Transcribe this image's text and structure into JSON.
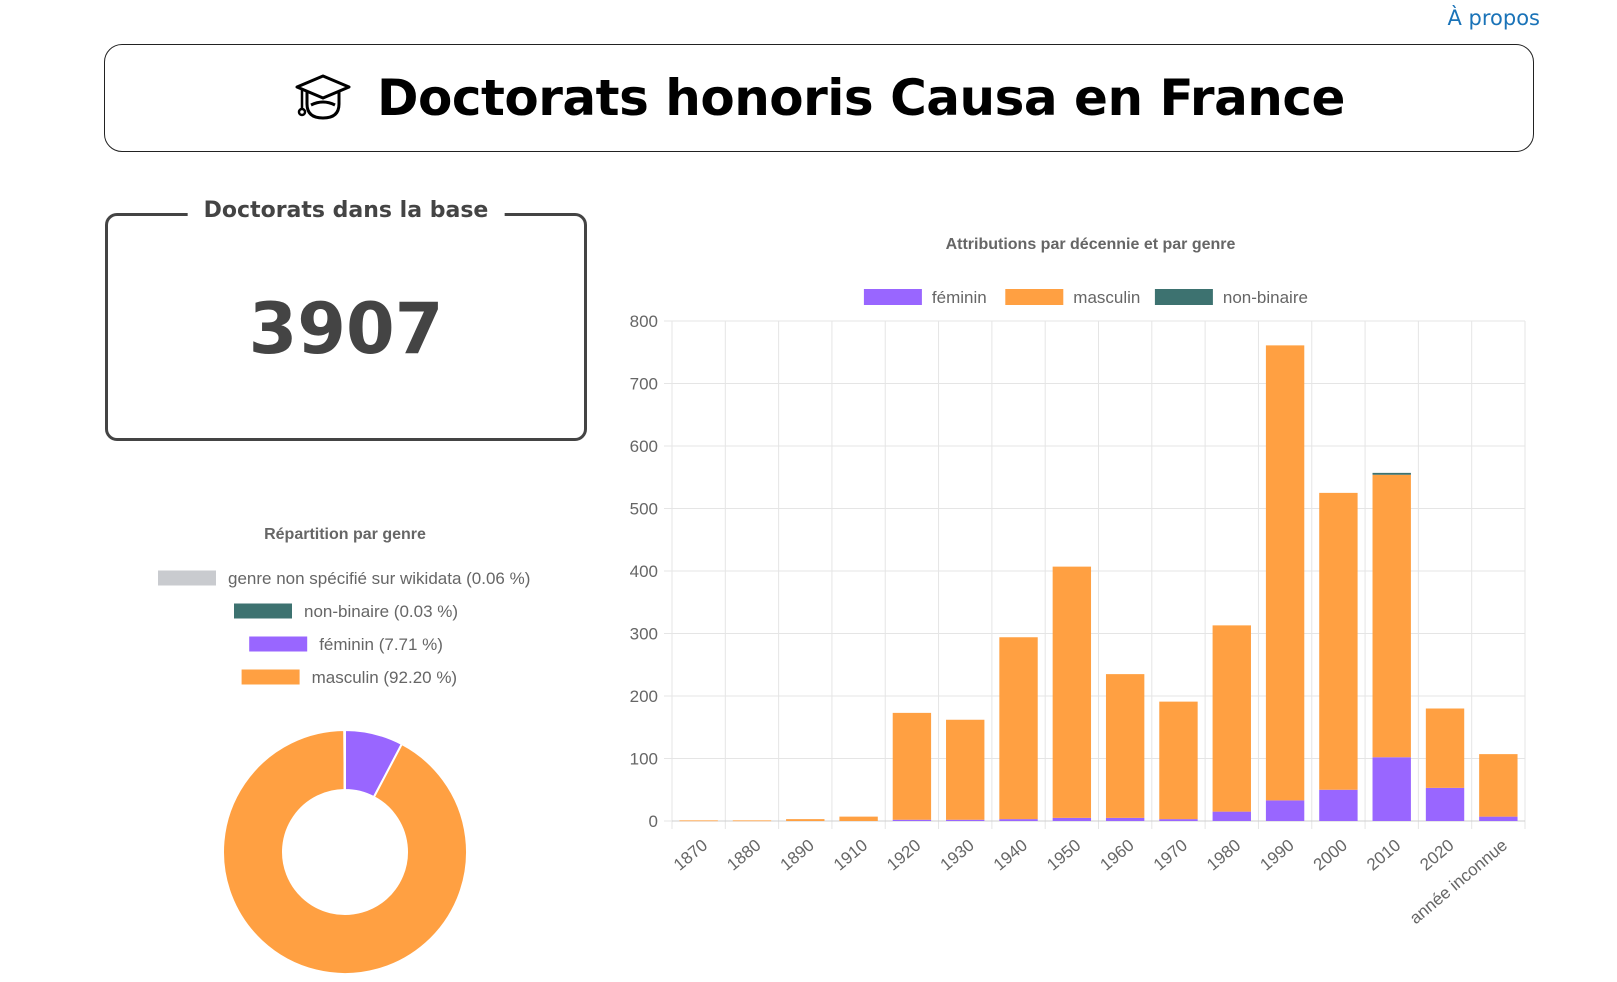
{
  "nav": {
    "about_label": "À propos"
  },
  "header": {
    "title": "Doctorats honoris Causa en France",
    "icon": "graduation-cap-icon"
  },
  "stat": {
    "label": "Doctorats dans la base",
    "value": "3907"
  },
  "colors": {
    "feminin": "#9966ff",
    "masculin": "#ffa042",
    "non_binaire": "#3d7270",
    "non_specifie": "#c9cbcf"
  },
  "chart_data": [
    {
      "type": "pie",
      "title": "Répartition par genre",
      "donut": true,
      "legend_position": "top",
      "slices": [
        {
          "label": "genre non spécifié sur wikidata (0.06 %)",
          "value": 0.06,
          "color": "#c9cbcf"
        },
        {
          "label": "non-binaire (0.03 %)",
          "value": 0.03,
          "color": "#3d7270"
        },
        {
          "label": "féminin (7.71 %)",
          "value": 7.71,
          "color": "#9966ff"
        },
        {
          "label": "masculin (92.20 %)",
          "value": 92.2,
          "color": "#ffa042"
        }
      ]
    },
    {
      "type": "bar",
      "stacked": true,
      "title": "Attributions par décennie et par genre",
      "legend_position": "top",
      "grid": true,
      "categories": [
        "1870",
        "1880",
        "1890",
        "1910",
        "1920",
        "1930",
        "1940",
        "1950",
        "1960",
        "1970",
        "1980",
        "1990",
        "2000",
        "2010",
        "2020",
        "année inconnue"
      ],
      "ylim": [
        0,
        800
      ],
      "yticks": [
        "0",
        "100",
        "200",
        "300",
        "400",
        "500",
        "600",
        "700",
        "800"
      ],
      "series": [
        {
          "name": "féminin",
          "color": "#9966ff",
          "values": [
            0,
            0,
            0,
            0,
            2,
            2,
            3,
            5,
            5,
            3,
            15,
            33,
            50,
            102,
            53,
            7
          ]
        },
        {
          "name": "masculin",
          "color": "#ffa042",
          "values": [
            1,
            1,
            3,
            7,
            171,
            160,
            291,
            402,
            230,
            188,
            298,
            728,
            475,
            452,
            127,
            100
          ]
        },
        {
          "name": "non-binaire",
          "color": "#3d7270",
          "values": [
            0,
            0,
            0,
            0,
            0,
            0,
            0,
            0,
            0,
            0,
            0,
            0,
            0,
            3,
            0,
            0
          ]
        }
      ]
    }
  ]
}
